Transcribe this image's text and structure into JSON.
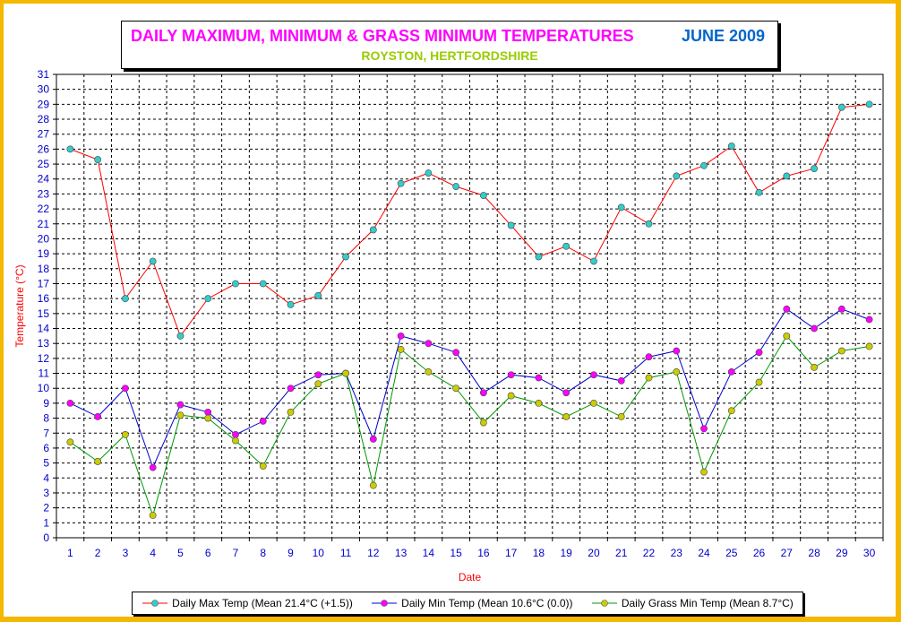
{
  "colors": {
    "background_frame": "#f5b800",
    "max_line": "#ff0000",
    "max_marker": "#33cccc",
    "min_line": "#0000cc",
    "min_marker": "#ff00ff",
    "grass_line": "#009900",
    "grass_marker": "#cccc00",
    "axis_label": "#ff0000",
    "tick_label": "#0000cc"
  },
  "chart_data": {
    "type": "line",
    "title": "DAILY MAXIMUM, MINIMUM & GRASS MINIMUM TEMPERATURES",
    "period": "JUNE 2009",
    "subtitle": "ROYSTON, HERTFORDSHIRE",
    "xlabel": "Date",
    "ylabel": "Temperature (°C)",
    "ylim": [
      0,
      31
    ],
    "grid": true,
    "legend_position": "bottom",
    "x": [
      1,
      2,
      3,
      4,
      5,
      6,
      7,
      8,
      9,
      10,
      11,
      12,
      13,
      14,
      15,
      16,
      17,
      18,
      19,
      20,
      21,
      22,
      23,
      24,
      25,
      26,
      27,
      28,
      29,
      30
    ],
    "y_ticks": [
      0,
      1,
      2,
      3,
      4,
      5,
      6,
      7,
      8,
      9,
      10,
      11,
      12,
      13,
      14,
      15,
      16,
      17,
      18,
      19,
      20,
      21,
      22,
      23,
      24,
      25,
      26,
      27,
      28,
      29,
      30,
      31
    ],
    "series": [
      {
        "name": "Daily Max Temp (Mean 21.4°C (+1.5))",
        "values": [
          26.0,
          25.3,
          16.0,
          18.5,
          13.5,
          16.0,
          17.0,
          17.0,
          15.6,
          16.2,
          18.8,
          20.6,
          23.7,
          24.4,
          23.5,
          22.9,
          20.9,
          18.8,
          19.5,
          18.5,
          22.1,
          21.0,
          24.2,
          24.9,
          26.2,
          23.1,
          24.2,
          24.7,
          28.8,
          29.0
        ],
        "line": "#ff0000",
        "marker": "#33cccc"
      },
      {
        "name": "Daily Min Temp (Mean 10.6°C (0.0))",
        "values": [
          9.0,
          8.1,
          10.0,
          4.7,
          8.9,
          8.4,
          6.9,
          7.8,
          10.0,
          10.9,
          11.0,
          6.6,
          13.5,
          13.0,
          12.4,
          9.7,
          10.9,
          10.7,
          9.7,
          10.9,
          10.5,
          12.1,
          12.5,
          7.3,
          11.1,
          12.4,
          15.3,
          14.0,
          15.3,
          14.6
        ],
        "line": "#0000cc",
        "marker": "#ff00ff"
      },
      {
        "name": "Daily Grass Min Temp (Mean 8.7°C)",
        "values": [
          6.4,
          5.1,
          6.9,
          1.5,
          8.2,
          8.0,
          6.5,
          4.8,
          8.4,
          10.3,
          11.0,
          3.5,
          12.6,
          11.1,
          10.0,
          7.7,
          9.5,
          9.0,
          8.1,
          9.0,
          8.1,
          10.7,
          11.1,
          4.4,
          8.5,
          10.4,
          13.5,
          11.4,
          12.5,
          12.8
        ],
        "line": "#009900",
        "marker": "#cccc00"
      }
    ]
  }
}
